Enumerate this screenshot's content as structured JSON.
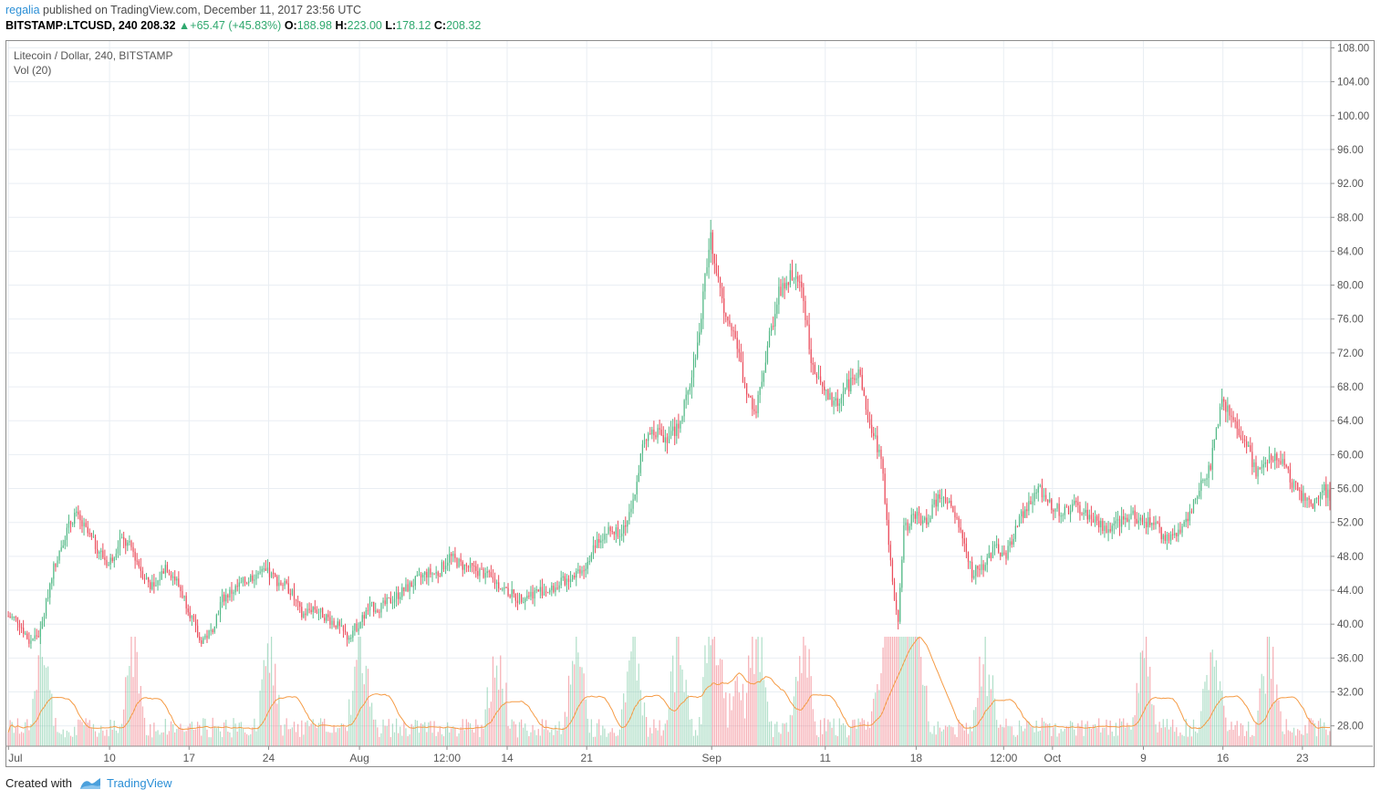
{
  "header": {
    "author": "regalia",
    "published": " published on TradingView.com, December 11, 2017 23:56 UTC",
    "symbol": "BITSTAMP:LTCUSD, 240",
    "last": "208.32",
    "change": "+65.47 (+45.83%)",
    "o_label": "O:",
    "o": "188.98",
    "h_label": "H:",
    "h": "223.00",
    "l_label": "L:",
    "l": "178.12",
    "c_label": "C:",
    "c": "208.32"
  },
  "legend": {
    "title": "Litecoin / Dollar, 240, BITSTAMP",
    "vol": "Vol (20)"
  },
  "footer": {
    "created": "Created with",
    "brand": "TradingView"
  },
  "chart_data": {
    "type": "candlestick",
    "title": "Litecoin / Dollar, 240, BITSTAMP",
    "xlabel": "",
    "ylabel": "",
    "ylim": [
      25.6,
      108.8
    ],
    "y_ticks": [
      "108.00",
      "104.00",
      "100.00",
      "96.00",
      "92.00",
      "88.00",
      "84.00",
      "80.00",
      "76.00",
      "72.00",
      "68.00",
      "64.00",
      "60.00",
      "56.00",
      "52.00",
      "48.00",
      "44.00",
      "40.00",
      "36.00",
      "32.00",
      "28.00"
    ],
    "x_tick_labels": [
      "Jul",
      "10",
      "17",
      "24",
      "Aug",
      "12:00",
      "14",
      "21",
      "Sep",
      "11",
      "18",
      "12:00",
      "Oct",
      "9",
      "16",
      "23"
    ],
    "x_tick_days": [
      0.1,
      9,
      16,
      23,
      31,
      38.7,
      44,
      51,
      62,
      72,
      80,
      87.7,
      92,
      100,
      107,
      114
    ],
    "days_span": 116.5,
    "price_path_day_close": [
      [
        0,
        41
      ],
      [
        1,
        40.5
      ],
      [
        2,
        38
      ],
      [
        3,
        39
      ],
      [
        4,
        46
      ],
      [
        5,
        50
      ],
      [
        6,
        53
      ],
      [
        7,
        51
      ],
      [
        8,
        49
      ],
      [
        9,
        47
      ],
      [
        10,
        50
      ],
      [
        11,
        49
      ],
      [
        12,
        46
      ],
      [
        13,
        44
      ],
      [
        14,
        47
      ],
      [
        15,
        45
      ],
      [
        16,
        42
      ],
      [
        17,
        38
      ],
      [
        18,
        39
      ],
      [
        19,
        43
      ],
      [
        20,
        44
      ],
      [
        21,
        45
      ],
      [
        22,
        46
      ],
      [
        23,
        46
      ],
      [
        24,
        45
      ],
      [
        25,
        44
      ],
      [
        26,
        41
      ],
      [
        27,
        42
      ],
      [
        28,
        41
      ],
      [
        29,
        40
      ],
      [
        30,
        38.5
      ],
      [
        31,
        40
      ],
      [
        32,
        42
      ],
      [
        33,
        42
      ],
      [
        34,
        43
      ],
      [
        35,
        44
      ],
      [
        36,
        45
      ],
      [
        37,
        46
      ],
      [
        38,
        46
      ],
      [
        39,
        48
      ],
      [
        40,
        47
      ],
      [
        41,
        46.5
      ],
      [
        42,
        46
      ],
      [
        43,
        45
      ],
      [
        44,
        44
      ],
      [
        45,
        43
      ],
      [
        46,
        43.5
      ],
      [
        47,
        44
      ],
      [
        48,
        44
      ],
      [
        49,
        45
      ],
      [
        50,
        46
      ],
      [
        51,
        47
      ],
      [
        52,
        50
      ],
      [
        53,
        51
      ],
      [
        54,
        51
      ],
      [
        55,
        53
      ],
      [
        56,
        61
      ],
      [
        57,
        63
      ],
      [
        58,
        62
      ],
      [
        59,
        63
      ],
      [
        60,
        67
      ],
      [
        61,
        75
      ],
      [
        62,
        86
      ],
      [
        63,
        78
      ],
      [
        64,
        75
      ],
      [
        65,
        68
      ],
      [
        66,
        65
      ],
      [
        67,
        73
      ],
      [
        68,
        79
      ],
      [
        69,
        81
      ],
      [
        70,
        80
      ],
      [
        71,
        70
      ],
      [
        72,
        67
      ],
      [
        73,
        66
      ],
      [
        74,
        68
      ],
      [
        75,
        70
      ],
      [
        76,
        63
      ],
      [
        77,
        60
      ],
      [
        77.5,
        52
      ],
      [
        78,
        45
      ],
      [
        78.5,
        40
      ],
      [
        79,
        51
      ],
      [
        80,
        53
      ],
      [
        81,
        52
      ],
      [
        82,
        55
      ],
      [
        83,
        54
      ],
      [
        84,
        51
      ],
      [
        85,
        46
      ],
      [
        86,
        47
      ],
      [
        87,
        49
      ],
      [
        88,
        48
      ],
      [
        89,
        52
      ],
      [
        90,
        54
      ],
      [
        91,
        56
      ],
      [
        92,
        54
      ],
      [
        93,
        53
      ],
      [
        94,
        54
      ],
      [
        95,
        53
      ],
      [
        96,
        52
      ],
      [
        97,
        51
      ],
      [
        98,
        52
      ],
      [
        99,
        53
      ],
      [
        100,
        52
      ],
      [
        101,
        52
      ],
      [
        102,
        50
      ],
      [
        103,
        51
      ],
      [
        104,
        52
      ],
      [
        105,
        56
      ],
      [
        106,
        59
      ],
      [
        107,
        66
      ],
      [
        108,
        64
      ],
      [
        109,
        62
      ],
      [
        110,
        58
      ],
      [
        111,
        59
      ],
      [
        112,
        60
      ],
      [
        113,
        57
      ],
      [
        114,
        55
      ],
      [
        115,
        54
      ],
      [
        116,
        56
      ],
      [
        116.5,
        55
      ]
    ],
    "volume_spike_days": [
      3,
      11,
      23,
      31,
      43,
      50,
      55,
      59,
      62,
      66,
      70,
      77,
      78,
      79,
      80,
      86,
      100,
      106,
      111
    ],
    "volume_note": "Vol (20) histogram with 20-period moving average; values not labeled"
  }
}
